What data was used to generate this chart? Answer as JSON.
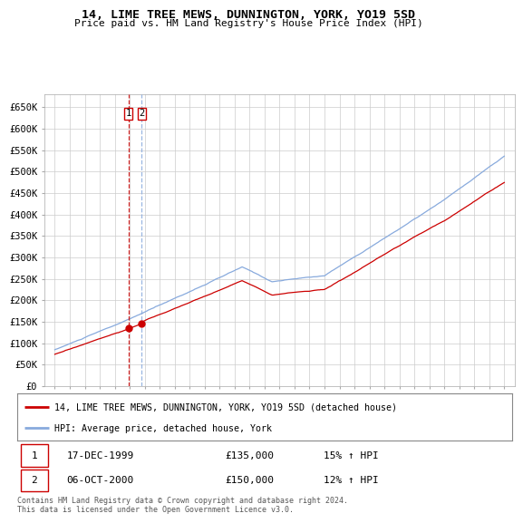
{
  "title": "14, LIME TREE MEWS, DUNNINGTON, YORK, YO19 5SD",
  "subtitle": "Price paid vs. HM Land Registry's House Price Index (HPI)",
  "ylabel_ticks": [
    "£0",
    "£50K",
    "£100K",
    "£150K",
    "£200K",
    "£250K",
    "£300K",
    "£350K",
    "£400K",
    "£450K",
    "£500K",
    "£550K",
    "£600K",
    "£650K"
  ],
  "ytick_values": [
    0,
    50000,
    100000,
    150000,
    200000,
    250000,
    300000,
    350000,
    400000,
    450000,
    500000,
    550000,
    600000,
    650000
  ],
  "ylim": [
    0,
    680000
  ],
  "legend_line1": "14, LIME TREE MEWS, DUNNINGTON, YORK, YO19 5SD (detached house)",
  "legend_line2": "HPI: Average price, detached house, York",
  "transaction1_label": "1",
  "transaction1_date": "17-DEC-1999",
  "transaction1_price": "£135,000",
  "transaction1_hpi": "15% ↑ HPI",
  "transaction2_label": "2",
  "transaction2_date": "06-OCT-2000",
  "transaction2_price": "£150,000",
  "transaction2_hpi": "12% ↑ HPI",
  "footer": "Contains HM Land Registry data © Crown copyright and database right 2024.\nThis data is licensed under the Open Government Licence v3.0.",
  "red_color": "#cc0000",
  "blue_color": "#88aadd",
  "grid_color": "#cccccc",
  "background_color": "#ffffff",
  "transaction1_year": 1999.96,
  "transaction2_year": 2000.77
}
